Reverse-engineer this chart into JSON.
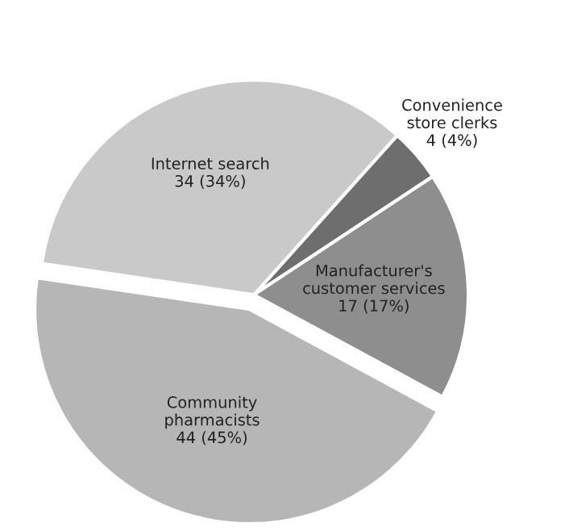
{
  "chart_data": {
    "type": "pie",
    "categories": [
      "Convenience\nstore clerks",
      "Manufacturer's\ncustomer services",
      "Community\npharmacists",
      "Internet search"
    ],
    "values": [
      4,
      17,
      44,
      34
    ],
    "colors": [
      "#6e6e6e",
      "#8e8e8e",
      "#b6b6b6",
      "#c9c9c9"
    ],
    "value_labels": [
      "4 (4%)",
      "17 (17%)",
      "44 (45%)",
      "34 (34%)"
    ]
  }
}
